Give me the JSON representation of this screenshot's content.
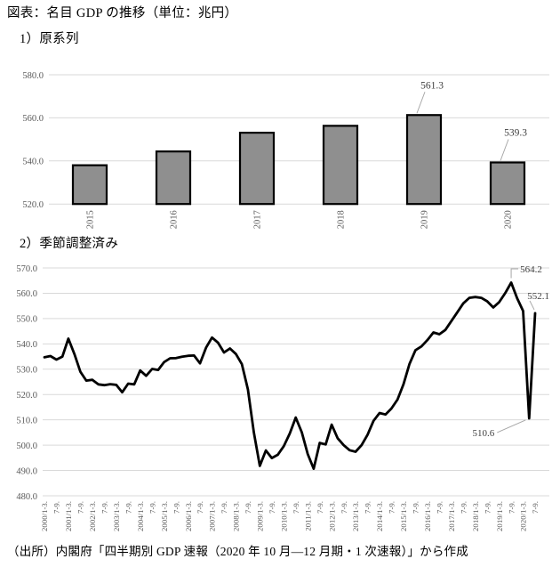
{
  "page": {
    "title": "図表：名目 GDP の推移（単位：兆円）",
    "source": "（出所）内閣府「四半期別 GDP 速報（2020 年 10 月―12 月期・1 次速報）」から作成"
  },
  "colors": {
    "bar_fill": "#8f8f8f",
    "bar_stroke": "#000000",
    "line": "#000000",
    "gridline": "#d9d9d9",
    "axis_label": "#595959",
    "annotation_text": "#3f3f3f",
    "annotation_leader": "#a6a6a6"
  },
  "chart_data": [
    {
      "id": "bar-annual",
      "type": "bar",
      "section_label": "1）原系列",
      "categories": [
        "2015",
        "2016",
        "2017",
        "2018",
        "2019",
        "2020"
      ],
      "values": [
        538.0,
        544.4,
        553.1,
        556.3,
        561.3,
        539.3
      ],
      "ylim": [
        520,
        580
      ],
      "ytick_labels": [
        "520.0",
        "540.0",
        "560.0",
        "580.0"
      ],
      "grid": true,
      "legend": "none",
      "annotations": [
        {
          "label": "561.3",
          "category": "2019"
        },
        {
          "label": "539.3",
          "category": "2020"
        }
      ]
    },
    {
      "id": "line-quarterly",
      "type": "line",
      "section_label": "2）季節調整済み",
      "x_tick_labels": [
        "2000/1-3.",
        "7-9.",
        "2001/1-3.",
        "7-9.",
        "2002/1-3.",
        "7-9.",
        "2003/1-3.",
        "7-9.",
        "2004/1-3.",
        "7-9.",
        "2005/1-3.",
        "7-9.",
        "2006/1-3.",
        "7-9.",
        "2007/1-3.",
        "7-9.",
        "2008/1-3.",
        "7-9.",
        "2009/1-3.",
        "7-9.",
        "2010/1-3.",
        "7-9.",
        "2011/1-3.",
        "7-9.",
        "2012/1-3.",
        "7-9.",
        "2013/1-3.",
        "7-9.",
        "2014/1-3.",
        "7-9.",
        "2015/1-3.",
        "7-9.",
        "2016/1-3.",
        "7-9.",
        "2017/1-3.",
        "7-9.",
        "2018/1-3.",
        "7-9.",
        "2019/1-3.",
        "7-9.",
        "2020/1-3.",
        "7-9."
      ],
      "values": [
        534.7,
        535.2,
        533.8,
        535.0,
        542.1,
        536.0,
        529.0,
        525.5,
        525.8,
        524.0,
        523.7,
        524.1,
        523.8,
        520.9,
        524.3,
        524.0,
        529.5,
        527.4,
        530.1,
        529.7,
        532.8,
        534.3,
        534.4,
        534.9,
        535.3,
        535.4,
        532.3,
        538.5,
        542.5,
        540.5,
        536.6,
        538.2,
        536.0,
        532.0,
        522.0,
        505.0,
        491.8,
        497.9,
        494.9,
        496.2,
        499.6,
        504.6,
        510.9,
        505.1,
        496.5,
        490.7,
        500.9,
        500.3,
        508.1,
        502.7,
        500.0,
        498.0,
        497.4,
        500.0,
        504.1,
        509.6,
        512.7,
        512.1,
        514.5,
        518.0,
        524.0,
        532.0,
        537.5,
        539.0,
        541.5,
        544.5,
        543.8,
        545.5,
        549.0,
        552.5,
        556.0,
        558.2,
        558.5,
        558.2,
        556.8,
        554.4,
        556.5,
        560.0,
        564.2,
        558.0,
        553.0,
        510.6,
        552.1
      ],
      "ylim": [
        480,
        570
      ],
      "ytick_labels": [
        "480.0",
        "490.0",
        "500.0",
        "510.0",
        "520.0",
        "530.0",
        "540.0",
        "550.0",
        "560.0",
        "570.0"
      ],
      "grid": true,
      "legend": "none",
      "annotations": [
        {
          "label": "564.2",
          "index": 78,
          "style": "elbow-up"
        },
        {
          "label": "552.1",
          "index": 82,
          "style": "slant-upper-right"
        },
        {
          "label": "510.6",
          "index": 81,
          "style": "label-left"
        }
      ]
    }
  ]
}
